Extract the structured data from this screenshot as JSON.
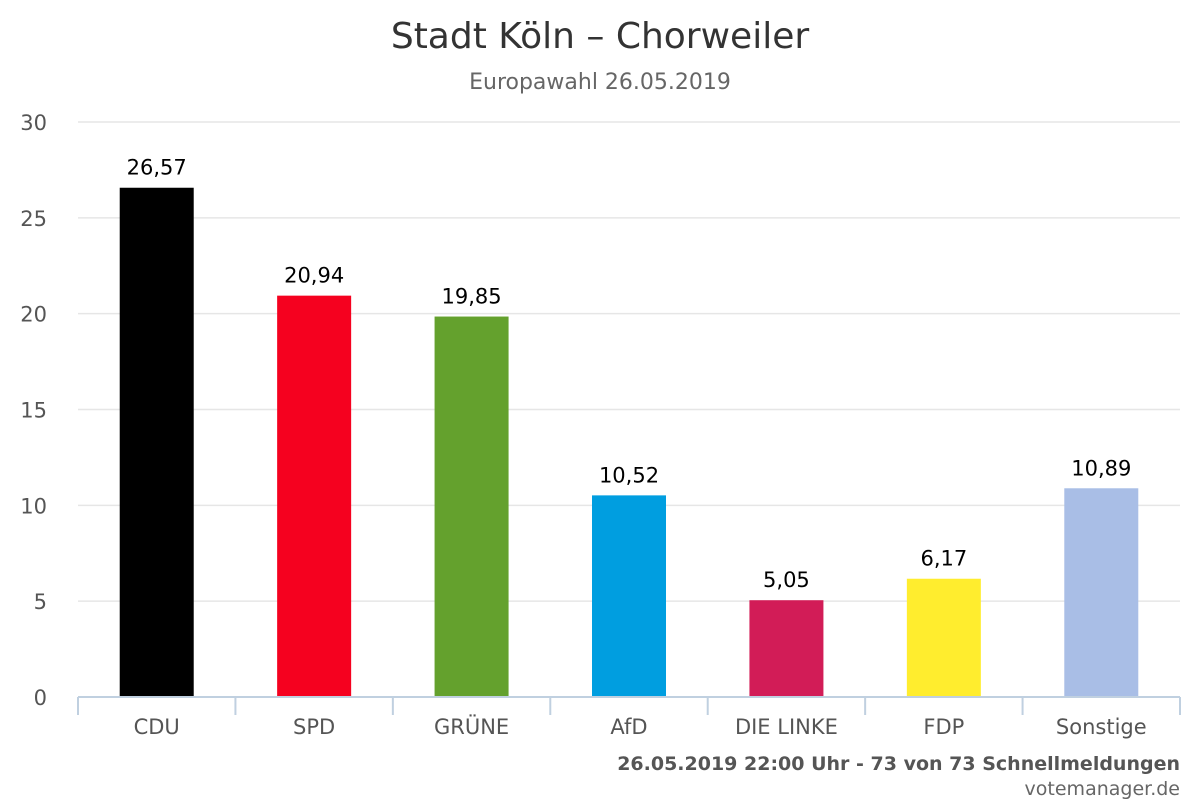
{
  "chart_data": {
    "type": "bar",
    "title": "Stadt Köln – Chorweiler",
    "subtitle": "Europawahl 26.05.2019",
    "categories": [
      "CDU",
      "SPD",
      "GRÜNE",
      "AfD",
      "DIE LINKE",
      "FDP",
      "Sonstige"
    ],
    "values": [
      26.57,
      20.94,
      19.85,
      10.52,
      5.05,
      6.17,
      10.89
    ],
    "value_labels": [
      "26,57",
      "20,94",
      "19,85",
      "10,52",
      "5,05",
      "6,17",
      "10,89"
    ],
    "colors": [
      "#000000",
      "#f5011f",
      "#64a12d",
      "#009ee0",
      "#d21c57",
      "#ffed2e",
      "#a9bee6"
    ],
    "ylim": [
      0,
      30
    ],
    "yticks": [
      0,
      5,
      10,
      15,
      20,
      25,
      30
    ],
    "grid": true,
    "legend": "none"
  },
  "footer": {
    "status": "26.05.2019 22:00 Uhr - 73 von 73 Schnellmeldungen",
    "credit": "votemanager.de"
  }
}
